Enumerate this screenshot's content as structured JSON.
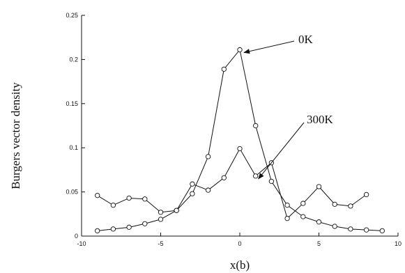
{
  "chart_data": {
    "type": "line",
    "xlabel": "x(b)",
    "ylabel": "Burgers vector density",
    "xlim": [
      -10,
      10
    ],
    "ylim": [
      0,
      0.25
    ],
    "xticks": [
      -10,
      -5,
      0,
      5,
      10
    ],
    "xtick_labels": [
      "-10",
      "-5",
      "0",
      "5",
      "10"
    ],
    "yticks": [
      0,
      0.05,
      0.1,
      0.15,
      0.2,
      0.25
    ],
    "ytick_labels": [
      "0",
      "0.05",
      "0.1",
      "0.15",
      "0.2",
      "0.25"
    ],
    "grid": false,
    "marker": "open-circle",
    "line_color": "#111111",
    "series": [
      {
        "label": "0K",
        "x": [
          -9,
          -8,
          -7,
          -6,
          -5,
          -4,
          -3,
          -2,
          -1,
          0,
          1,
          2,
          3,
          4,
          5,
          6,
          7,
          8,
          9
        ],
        "values": [
          0.006,
          0.008,
          0.01,
          0.014,
          0.019,
          0.029,
          0.048,
          0.09,
          0.189,
          0.211,
          0.125,
          0.062,
          0.035,
          0.022,
          0.016,
          0.011,
          0.008,
          0.007,
          0.006
        ]
      },
      {
        "label": "300K",
        "x": [
          -9,
          -8,
          -7,
          -6,
          -5,
          -4,
          -3,
          -2,
          -1,
          0,
          1,
          2,
          3,
          4,
          5,
          6,
          7,
          8
        ],
        "values": [
          0.046,
          0.035,
          0.043,
          0.042,
          0.027,
          0.029,
          0.059,
          0.052,
          0.066,
          0.099,
          0.068,
          0.083,
          0.02,
          0.037,
          0.056,
          0.036,
          0.034,
          0.047
        ]
      }
    ],
    "annotations": [
      {
        "text": "0K",
        "points_to": [
          0,
          0.211
        ]
      },
      {
        "text": "300K",
        "points_to": [
          1,
          0.068
        ]
      }
    ]
  }
}
